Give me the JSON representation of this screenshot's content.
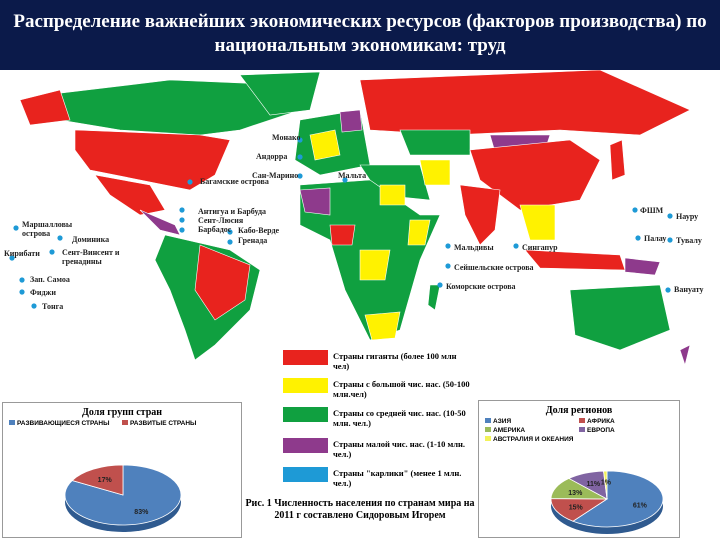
{
  "title": "Распределение важнейших экономических ресурсов (факторов производства) по национальным экономикам: труд",
  "map": {
    "labels": [
      "Монако",
      "Андорра",
      "Сан-Марино",
      "Мальта",
      "Багамские острова",
      "Антигуа и Барбуда",
      "Сент-Люсия",
      "Барбадос",
      "Кабо-Верде",
      "Гренада",
      "Маршалловы острова",
      "Доминика",
      "Кирибати",
      "Сент-Винсент и гренадины",
      "Зап. Самоа",
      "Фиджи",
      "Тонга",
      "ФШМ",
      "Науру",
      "Палау",
      "Тувалу",
      "Вануату",
      "Мальдивы",
      "Сингапур",
      "Сейшельские острова",
      "Коморские острова"
    ],
    "legend": [
      {
        "label": "Страны гиганты (более 100 млн чел)",
        "color": "#e8231e"
      },
      {
        "label": "Страны с большой чис. нас. (50-100 млн.чел)",
        "color": "#fff200"
      },
      {
        "label": "Страны со средней чис. нас. (10-50 млн. чел.)",
        "color": "#10a040"
      },
      {
        "label": "Страны малой чис. нас. (1-10 млн. чел.)",
        "color": "#8e3a8c"
      },
      {
        "label": "Страны \"карлики\" (менее 1 млн. чел.)",
        "color": "#1e9ad6"
      }
    ]
  },
  "caption": "Рис. 1 Численность населения по странам мира на 2011 г составлено Сидоровым Игорем",
  "chart_data": [
    {
      "type": "pie",
      "title": "Доля групп стран",
      "categories": [
        "РАЗВИВАЮЩИЕСЯ СТРАНЫ",
        "РАЗВИТЫЕ СТРАНЫ"
      ],
      "values": [
        83,
        17
      ],
      "value_labels": [
        "83%",
        "17%"
      ],
      "colors": [
        "#4f81bd",
        "#c0504d"
      ]
    },
    {
      "type": "pie",
      "title": "Доля регионов",
      "categories": [
        "АЗИЯ",
        "АФРИКА",
        "АМЕРИКА",
        "ЕВРОПА",
        "АВСТРАЛИЯ И ОКЕАНИЯ"
      ],
      "values": [
        61,
        15,
        13,
        11,
        1
      ],
      "value_labels": [
        "61%",
        "15%",
        "13%",
        "11%",
        "1%"
      ],
      "colors": [
        "#4f81bd",
        "#c0504d",
        "#9bbb59",
        "#8064a2",
        "#f2f25a"
      ]
    }
  ]
}
